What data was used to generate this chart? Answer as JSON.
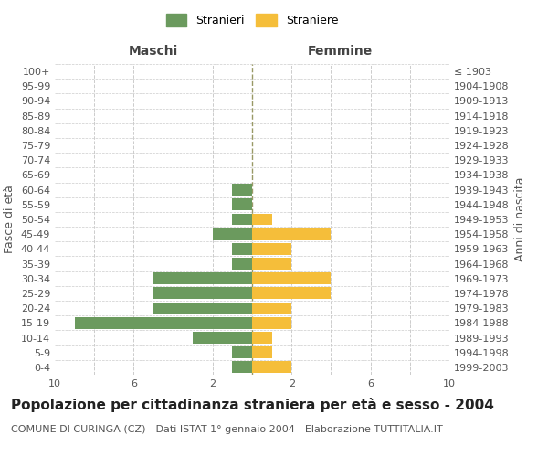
{
  "age_groups": [
    "100+",
    "95-99",
    "90-94",
    "85-89",
    "80-84",
    "75-79",
    "70-74",
    "65-69",
    "60-64",
    "55-59",
    "50-54",
    "45-49",
    "40-44",
    "35-39",
    "30-34",
    "25-29",
    "20-24",
    "15-19",
    "10-14",
    "5-9",
    "0-4"
  ],
  "birth_years": [
    "≤ 1903",
    "1904-1908",
    "1909-1913",
    "1914-1918",
    "1919-1923",
    "1924-1928",
    "1929-1933",
    "1934-1938",
    "1939-1943",
    "1944-1948",
    "1949-1953",
    "1954-1958",
    "1959-1963",
    "1964-1968",
    "1969-1973",
    "1974-1978",
    "1979-1983",
    "1984-1988",
    "1989-1993",
    "1994-1998",
    "1999-2003"
  ],
  "males": [
    0,
    0,
    0,
    0,
    0,
    0,
    0,
    0,
    1,
    1,
    1,
    2,
    1,
    1,
    5,
    5,
    5,
    9,
    3,
    1,
    1
  ],
  "females": [
    0,
    0,
    0,
    0,
    0,
    0,
    0,
    0,
    0,
    0,
    1,
    4,
    2,
    2,
    4,
    4,
    2,
    2,
    1,
    1,
    2
  ],
  "male_color": "#6b9a5e",
  "female_color": "#f5be3a",
  "bar_height": 0.8,
  "xlim": 10,
  "title": "Popolazione per cittadinanza straniera per età e sesso - 2004",
  "subtitle": "COMUNE DI CURINGA (CZ) - Dati ISTAT 1° gennaio 2004 - Elaborazione TUTTITALIA.IT",
  "legend_male": "Stranieri",
  "legend_female": "Straniere",
  "label_fasce": "Fasce di età",
  "label_anni": "Anni di nascita",
  "label_maschi": "Maschi",
  "label_femmine": "Femmine",
  "bg_color": "#ffffff",
  "grid_color": "#cccccc",
  "center_line_color": "#999966",
  "title_fontsize": 11,
  "subtitle_fontsize": 8,
  "axis_label_fontsize": 9,
  "tick_fontsize": 8
}
